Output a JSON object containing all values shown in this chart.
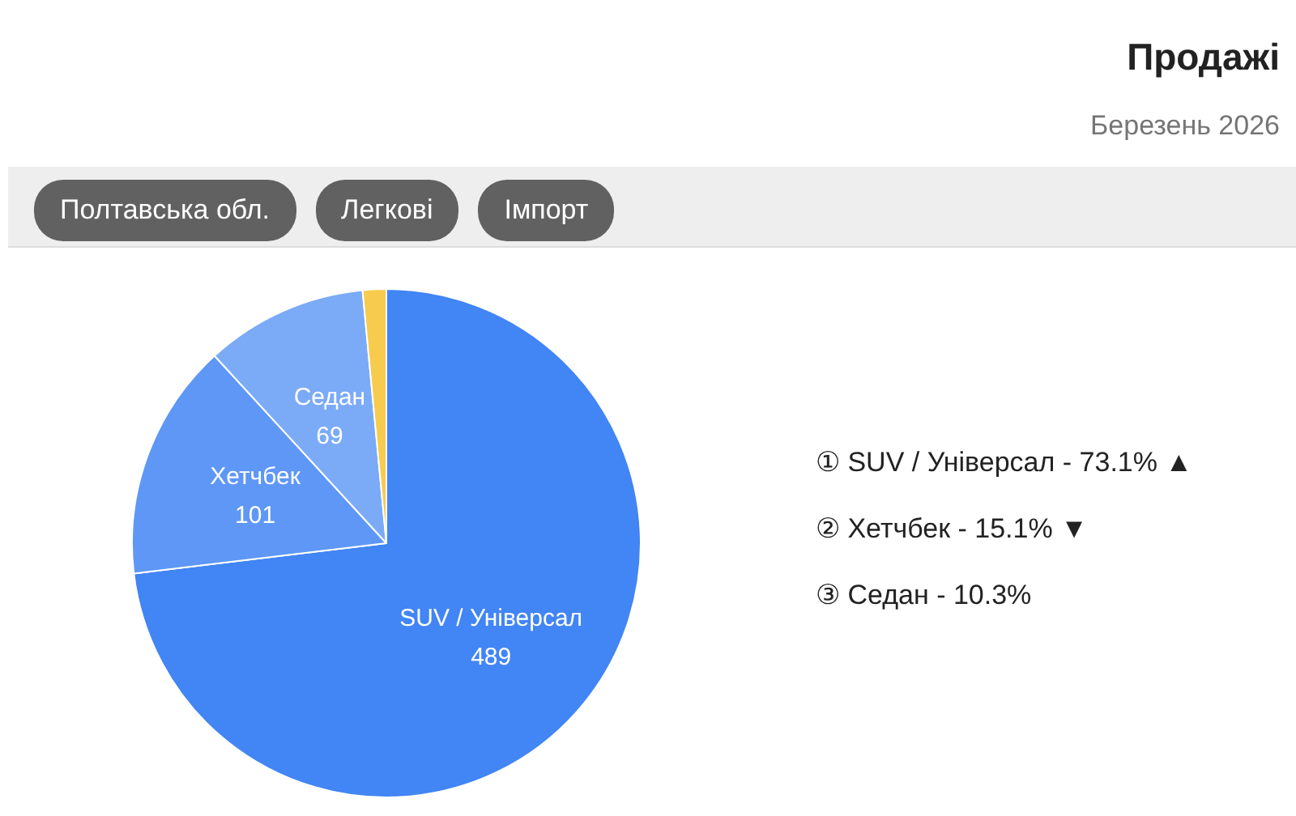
{
  "chart_data": {
    "type": "pie",
    "title": "Продажі",
    "subtitle": "Березень 2026",
    "categories": [
      "SUV / Універсал",
      "Хетчбек",
      "Седан",
      null
    ],
    "values": [
      489,
      101,
      69,
      10
    ],
    "colors": [
      "#4285f4",
      "#5e97f6",
      "#7baaf7",
      "#f7cb4d"
    ],
    "value_labels": [
      "489",
      "101",
      "69",
      null
    ],
    "annotations": [
      "Полтавська обл.",
      "Легкові",
      "Імпорт",
      "① SUV / Універсал - 73.1% ▲",
      "② Хетчбек - 15.1% ▼",
      "③ Седан - 10.3%"
    ]
  }
}
